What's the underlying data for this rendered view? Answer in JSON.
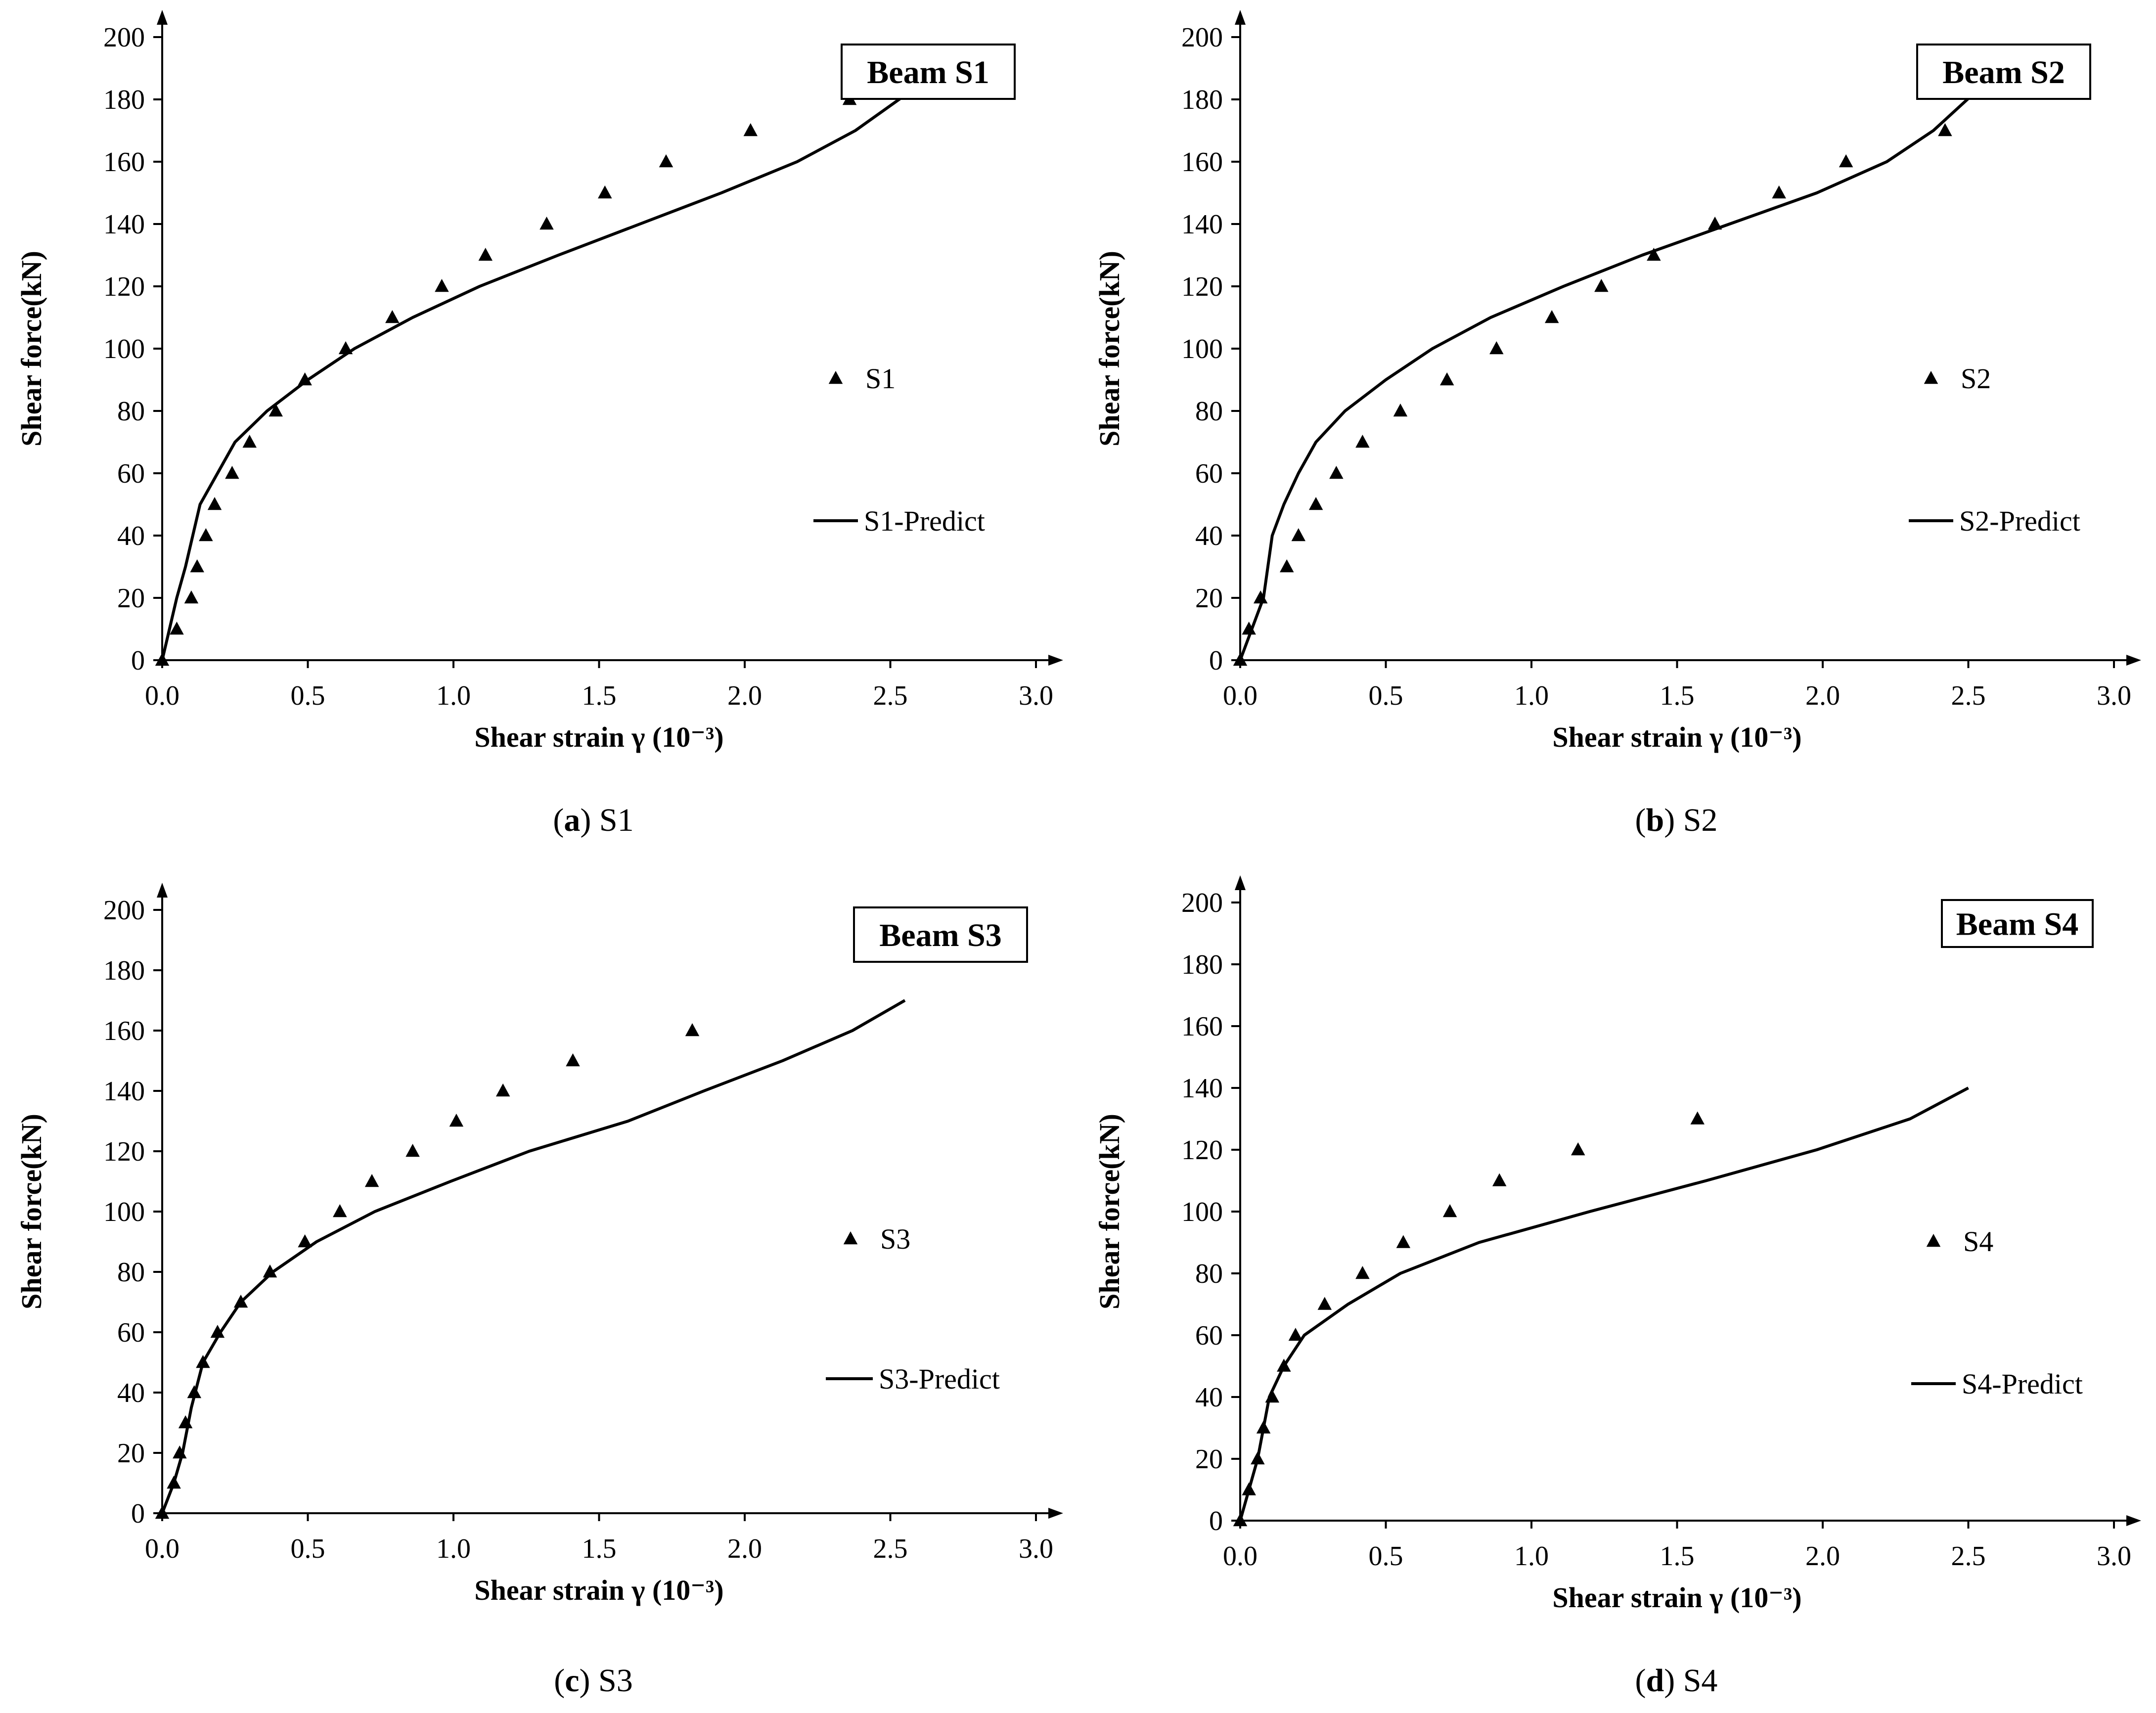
{
  "chart_data": [
    {
      "type": "scatter",
      "panel": "a",
      "caption_letter": "a",
      "caption_text": "S1",
      "title": "Beam S1",
      "xlabel": "Shear strain γ (10⁻³)",
      "ylabel": "Shear force(kN)",
      "xlim": [
        0,
        3.0
      ],
      "ylim": [
        0,
        200
      ],
      "xticks": [
        "0.0",
        "0.5",
        "1.0",
        "1.5",
        "2.0",
        "2.5",
        "3.0"
      ],
      "yticks": [
        "0",
        "20",
        "40",
        "60",
        "80",
        "100",
        "120",
        "140",
        "160",
        "180",
        "200"
      ],
      "series": [
        {
          "name": "S1",
          "kind": "marker",
          "x": [
            0,
            0.05,
            0.1,
            0.12,
            0.15,
            0.18,
            0.24,
            0.3,
            0.39,
            0.49,
            0.63,
            0.79,
            0.96,
            1.11,
            1.32,
            1.52,
            1.73,
            2.02,
            2.36
          ],
          "y": [
            0,
            10,
            20,
            30,
            40,
            50,
            60,
            70,
            80,
            90,
            100,
            110,
            120,
            130,
            140,
            150,
            160,
            170,
            180
          ]
        },
        {
          "name": "S1-Predict",
          "kind": "line",
          "x": [
            0,
            0.05,
            0.08,
            0.13,
            0.19,
            0.25,
            0.36,
            0.5,
            0.66,
            0.86,
            1.09,
            1.36,
            1.64,
            1.92,
            2.18,
            2.38,
            2.56
          ],
          "y": [
            0,
            20,
            30,
            50,
            60,
            70,
            80,
            90,
            100,
            110,
            120,
            130,
            140,
            150,
            160,
            170,
            182
          ]
        }
      ]
    },
    {
      "type": "scatter",
      "panel": "b",
      "caption_letter": "b",
      "caption_text": "S2",
      "title": "Beam S2",
      "xlabel": "Shear strain γ (10⁻³)",
      "ylabel": "Shear force(kN)",
      "xlim": [
        0,
        3.0
      ],
      "ylim": [
        0,
        200
      ],
      "xticks": [
        "0.0",
        "0.5",
        "1.0",
        "1.5",
        "2.0",
        "2.5",
        "3.0"
      ],
      "yticks": [
        "0",
        "20",
        "40",
        "60",
        "80",
        "100",
        "120",
        "140",
        "160",
        "180",
        "200"
      ],
      "series": [
        {
          "name": "S2",
          "kind": "marker",
          "x": [
            0,
            0.03,
            0.07,
            0.16,
            0.2,
            0.26,
            0.33,
            0.42,
            0.55,
            0.71,
            0.88,
            1.07,
            1.24,
            1.42,
            1.63,
            1.85,
            2.08,
            2.42
          ],
          "y": [
            0,
            10,
            20,
            30,
            40,
            50,
            60,
            70,
            80,
            90,
            100,
            110,
            120,
            130,
            140,
            150,
            160,
            170
          ]
        },
        {
          "name": "S2-Predict",
          "kind": "line",
          "x": [
            0,
            0.04,
            0.08,
            0.11,
            0.15,
            0.2,
            0.26,
            0.36,
            0.5,
            0.66,
            0.86,
            1.11,
            1.38,
            1.68,
            1.98,
            2.22,
            2.38,
            2.52
          ],
          "y": [
            0,
            10,
            20,
            40,
            50,
            60,
            70,
            80,
            90,
            100,
            110,
            120,
            130,
            140,
            150,
            160,
            170,
            182
          ]
        }
      ]
    },
    {
      "type": "scatter",
      "panel": "c",
      "caption_letter": "c",
      "caption_text": "S3",
      "title": "Beam S3",
      "xlabel": "Shear strain γ (10⁻³)",
      "ylabel": "Shear force(kN)",
      "xlim": [
        0,
        3.0
      ],
      "ylim": [
        0,
        200
      ],
      "xticks": [
        "0.0",
        "0.5",
        "1.0",
        "1.5",
        "2.0",
        "2.5",
        "3.0"
      ],
      "yticks": [
        "0",
        "20",
        "40",
        "60",
        "80",
        "100",
        "120",
        "140",
        "160",
        "180",
        "200"
      ],
      "series": [
        {
          "name": "S3",
          "kind": "marker",
          "x": [
            0,
            0.04,
            0.06,
            0.08,
            0.11,
            0.14,
            0.19,
            0.27,
            0.37,
            0.49,
            0.61,
            0.72,
            0.86,
            1.01,
            1.17,
            1.41,
            1.82
          ],
          "y": [
            0,
            10,
            20,
            30,
            40,
            50,
            60,
            70,
            80,
            90,
            100,
            110,
            120,
            130,
            140,
            150,
            160
          ]
        },
        {
          "name": "S3-Predict",
          "kind": "line",
          "x": [
            0,
            0.04,
            0.07,
            0.1,
            0.14,
            0.2,
            0.27,
            0.38,
            0.53,
            0.73,
            0.99,
            1.26,
            1.6,
            1.86,
            2.13,
            2.37,
            2.55
          ],
          "y": [
            0,
            10,
            20,
            35,
            50,
            60,
            70,
            80,
            90,
            100,
            110,
            120,
            130,
            140,
            150,
            160,
            170
          ]
        }
      ]
    },
    {
      "type": "scatter",
      "panel": "d",
      "caption_letter": "d",
      "caption_text": "S4",
      "title": "Beam S4",
      "xlabel": "Shear strain γ (10⁻³)",
      "ylabel": "Shear force(kN)",
      "xlim": [
        0,
        3.0
      ],
      "ylim": [
        0,
        200
      ],
      "xticks": [
        "0.0",
        "0.5",
        "1.0",
        "1.5",
        "2.0",
        "2.5",
        "3.0"
      ],
      "yticks": [
        "0",
        "20",
        "40",
        "60",
        "80",
        "100",
        "120",
        "140",
        "160",
        "180",
        "200"
      ],
      "series": [
        {
          "name": "S4",
          "kind": "marker",
          "x": [
            0,
            0.03,
            0.06,
            0.08,
            0.11,
            0.15,
            0.19,
            0.29,
            0.42,
            0.56,
            0.72,
            0.89,
            1.16,
            1.57
          ],
          "y": [
            0,
            10,
            20,
            30,
            40,
            50,
            60,
            70,
            80,
            90,
            100,
            110,
            120,
            130
          ]
        },
        {
          "name": "S4-Predict",
          "kind": "line",
          "x": [
            0,
            0.03,
            0.06,
            0.1,
            0.15,
            0.22,
            0.37,
            0.55,
            0.82,
            1.2,
            1.6,
            1.98,
            2.3,
            2.5
          ],
          "y": [
            0,
            10,
            20,
            40,
            50,
            60,
            70,
            80,
            90,
            100,
            110,
            120,
            130,
            140
          ]
        }
      ]
    }
  ]
}
